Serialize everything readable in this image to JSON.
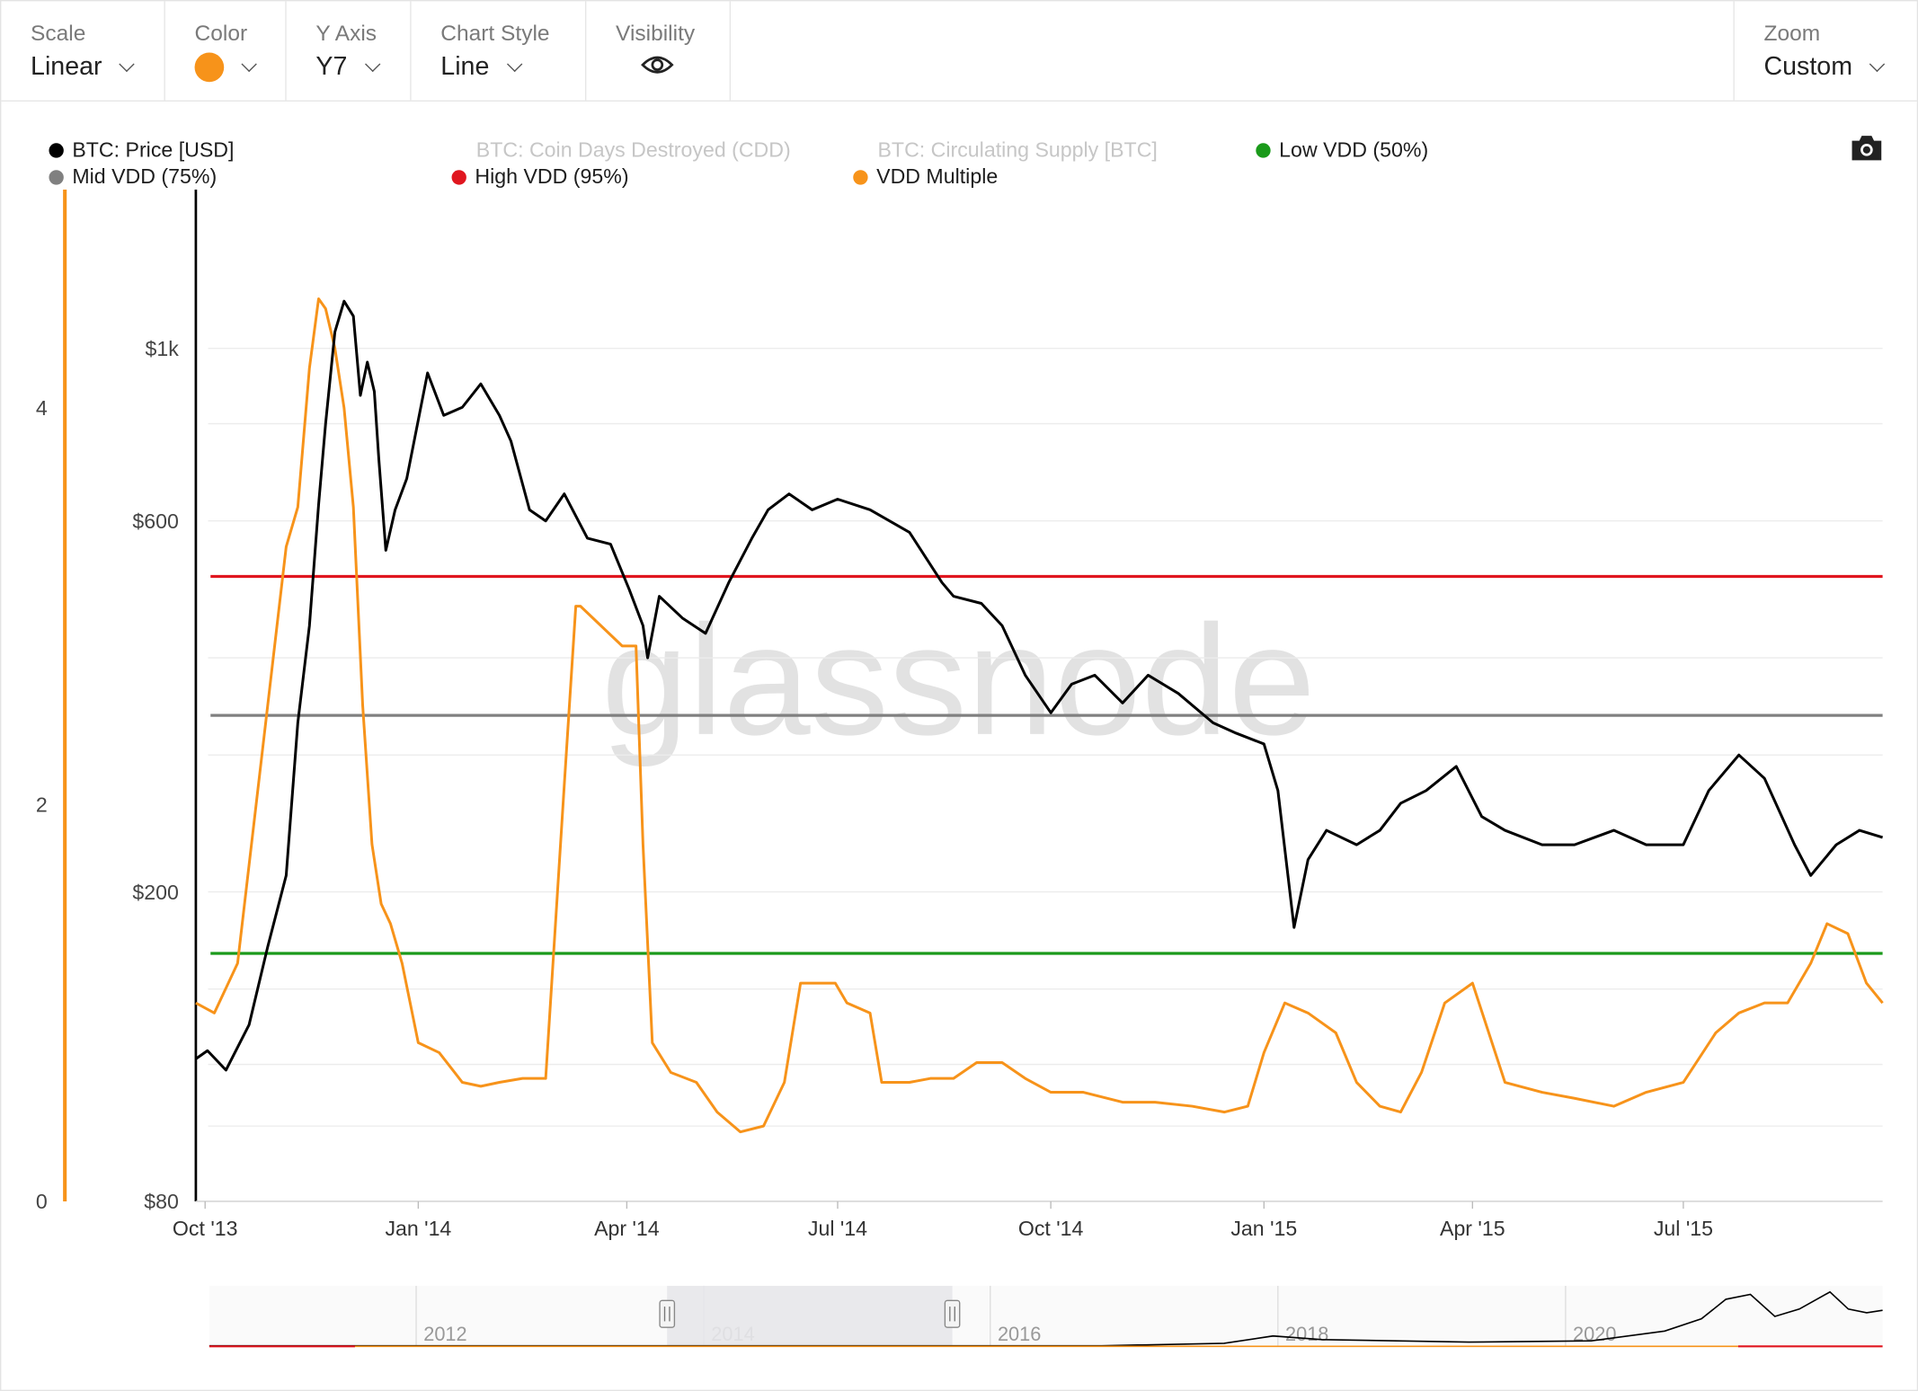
{
  "toolbar": {
    "scale": {
      "label": "Scale",
      "value": "Linear"
    },
    "color": {
      "label": "Color",
      "value": "#f7931a"
    },
    "y_axis": {
      "label": "Y Axis",
      "value": "Y7"
    },
    "chart_style": {
      "label": "Chart Style",
      "value": "Line"
    },
    "visibility": {
      "label": "Visibility",
      "icon": "eye-icon"
    },
    "zoom": {
      "label": "Zoom",
      "value": "Custom"
    }
  },
  "watermark": "glassnode",
  "colors": {
    "price": "#000000",
    "vdd_multiple": "#f7931a",
    "low_vdd": "#1a9a1a",
    "mid_vdd": "#808080",
    "high_vdd": "#e0161f"
  },
  "legend": [
    {
      "label": "BTC: Price [USD]",
      "color": "#000000",
      "active": true
    },
    {
      "label": "BTC: Coin Days Destroyed (CDD)",
      "color": "#cccccc",
      "active": false
    },
    {
      "label": "BTC: Circulating Supply [BTC]",
      "color": "#cccccc",
      "active": false
    },
    {
      "label": "Low VDD (50%)",
      "color": "#1a9a1a",
      "active": true
    },
    {
      "label": "Mid VDD (75%)",
      "color": "#808080",
      "active": true
    },
    {
      "label": "High VDD (95%)",
      "color": "#e0161f",
      "active": true
    },
    {
      "label": "VDD Multiple",
      "color": "#f7931a",
      "active": true
    }
  ],
  "chart_data": {
    "type": "line",
    "x_axis": {
      "type": "date",
      "range": [
        "2013-09-27",
        "2015-09-25"
      ],
      "ticks": [
        "Oct '13",
        "Jan '14",
        "Apr '14",
        "Jul '14",
        "Oct '14",
        "Jan '15",
        "Apr '15",
        "Jul '15"
      ]
    },
    "y_price": {
      "scale": "log",
      "range": [
        80,
        1600
      ],
      "ticks": [
        "$80",
        "$200",
        "$600",
        "$1k"
      ]
    },
    "y_vdd": {
      "scale": "linear",
      "range": [
        0,
        5.1
      ],
      "ticks": [
        "0",
        "2",
        "4"
      ]
    },
    "price_series": {
      "name": "BTC: Price [USD]",
      "x": [
        "2013-09-27",
        "2013-10-02",
        "2013-10-10",
        "2013-10-20",
        "2013-10-28",
        "2013-11-05",
        "2013-11-10",
        "2013-11-15",
        "2013-11-19",
        "2013-11-22",
        "2013-11-26",
        "2013-11-30",
        "2013-12-04",
        "2013-12-07",
        "2013-12-10",
        "2013-12-13",
        "2013-12-15",
        "2013-12-18",
        "2013-12-22",
        "2013-12-27",
        "2014-01-05",
        "2014-01-12",
        "2014-01-20",
        "2014-01-28",
        "2014-02-05",
        "2014-02-10",
        "2014-02-18",
        "2014-02-25",
        "2014-03-05",
        "2014-03-15",
        "2014-03-25",
        "2014-04-02",
        "2014-04-08",
        "2014-04-10",
        "2014-04-15",
        "2014-04-25",
        "2014-05-05",
        "2014-05-15",
        "2014-05-25",
        "2014-06-01",
        "2014-06-10",
        "2014-06-20",
        "2014-07-01",
        "2014-07-15",
        "2014-08-01",
        "2014-08-15",
        "2014-08-20",
        "2014-09-01",
        "2014-09-10",
        "2014-09-20",
        "2014-10-01",
        "2014-10-10",
        "2014-10-20",
        "2014-11-01",
        "2014-11-12",
        "2014-11-25",
        "2014-12-10",
        "2014-12-20",
        "2015-01-01",
        "2015-01-07",
        "2015-01-14",
        "2015-01-20",
        "2015-01-28",
        "2015-02-10",
        "2015-02-20",
        "2015-03-01",
        "2015-03-12",
        "2015-03-25",
        "2015-04-05",
        "2015-04-15",
        "2015-05-01",
        "2015-05-15",
        "2015-06-01",
        "2015-06-15",
        "2015-07-01",
        "2015-07-12",
        "2015-07-25",
        "2015-08-05",
        "2015-08-18",
        "2015-08-25",
        "2015-09-05",
        "2015-09-15",
        "2015-09-25"
      ],
      "y": [
        122,
        125,
        118,
        135,
        170,
        210,
        330,
        440,
        630,
        800,
        1050,
        1150,
        1100,
        870,
        960,
        880,
        720,
        550,
        620,
        680,
        930,
        820,
        840,
        900,
        820,
        760,
        620,
        600,
        650,
        570,
        560,
        490,
        440,
        400,
        480,
        450,
        430,
        500,
        570,
        620,
        650,
        620,
        640,
        620,
        580,
        500,
        480,
        470,
        440,
        380,
        340,
        370,
        380,
        350,
        380,
        360,
        330,
        320,
        310,
        270,
        180,
        220,
        240,
        230,
        240,
        260,
        270,
        290,
        250,
        240,
        230,
        230,
        240,
        230,
        230,
        270,
        300,
        280,
        230,
        210,
        230,
        240,
        235
      ]
    },
    "vdd_multiple_series": {
      "name": "VDD Multiple",
      "x": [
        "2013-09-27",
        "2013-10-05",
        "2013-10-15",
        "2013-10-28",
        "2013-11-05",
        "2013-11-10",
        "2013-11-15",
        "2013-11-19",
        "2013-11-22",
        "2013-11-26",
        "2013-11-30",
        "2013-12-04",
        "2013-12-08",
        "2013-12-12",
        "2013-12-16",
        "2013-12-20",
        "2013-12-25",
        "2014-01-01",
        "2014-01-10",
        "2014-01-20",
        "2014-01-28",
        "2014-02-05",
        "2014-02-15",
        "2014-02-25",
        "2014-03-05",
        "2014-03-10",
        "2014-03-12",
        "2014-03-30",
        "2014-04-05",
        "2014-04-08",
        "2014-04-12",
        "2014-04-20",
        "2014-05-01",
        "2014-05-10",
        "2014-05-20",
        "2014-05-30",
        "2014-06-08",
        "2014-06-15",
        "2014-06-30",
        "2014-07-05",
        "2014-07-15",
        "2014-07-20",
        "2014-08-01",
        "2014-08-10",
        "2014-08-20",
        "2014-08-30",
        "2014-09-10",
        "2014-09-20",
        "2014-10-01",
        "2014-10-15",
        "2014-11-01",
        "2014-11-15",
        "2014-12-01",
        "2014-12-15",
        "2014-12-25",
        "2015-01-01",
        "2015-01-10",
        "2015-01-20",
        "2015-02-01",
        "2015-02-10",
        "2015-02-20",
        "2015-03-01",
        "2015-03-10",
        "2015-03-20",
        "2015-04-01",
        "2015-04-15",
        "2015-05-01",
        "2015-05-15",
        "2015-06-01",
        "2015-06-15",
        "2015-07-01",
        "2015-07-15",
        "2015-07-25",
        "2015-08-05",
        "2015-08-15",
        "2015-08-25",
        "2015-09-01",
        "2015-09-10",
        "2015-09-18",
        "2015-09-25"
      ],
      "y": [
        1.0,
        0.95,
        1.2,
        2.5,
        3.3,
        3.5,
        4.2,
        4.55,
        4.5,
        4.3,
        4.0,
        3.5,
        2.5,
        1.8,
        1.5,
        1.4,
        1.2,
        0.8,
        0.75,
        0.6,
        0.58,
        0.6,
        0.62,
        0.62,
        2.1,
        3.0,
        3.0,
        2.8,
        2.8,
        1.8,
        0.8,
        0.65,
        0.6,
        0.45,
        0.35,
        0.38,
        0.6,
        1.1,
        1.1,
        1.0,
        0.95,
        0.6,
        0.6,
        0.62,
        0.62,
        0.7,
        0.7,
        0.62,
        0.55,
        0.55,
        0.5,
        0.5,
        0.48,
        0.45,
        0.48,
        0.75,
        1.0,
        0.95,
        0.85,
        0.6,
        0.48,
        0.45,
        0.65,
        1.0,
        1.1,
        0.6,
        0.55,
        0.52,
        0.48,
        0.55,
        0.6,
        0.85,
        0.95,
        1.0,
        1.0,
        1.2,
        1.4,
        1.35,
        1.1,
        1.0
      ]
    },
    "thresholds": [
      {
        "name": "Low VDD (50%)",
        "value": 1.25
      },
      {
        "name": "Mid VDD (75%)",
        "value": 2.45
      },
      {
        "name": "High VDD (95%)",
        "value": 509
      }
    ],
    "navigator": {
      "labels": [
        "2012",
        "2014",
        "2016",
        "2018",
        "2020"
      ],
      "selected": [
        "2013-09-27",
        "2015-09-25"
      ]
    },
    "grid": true,
    "legend_position": "top"
  }
}
